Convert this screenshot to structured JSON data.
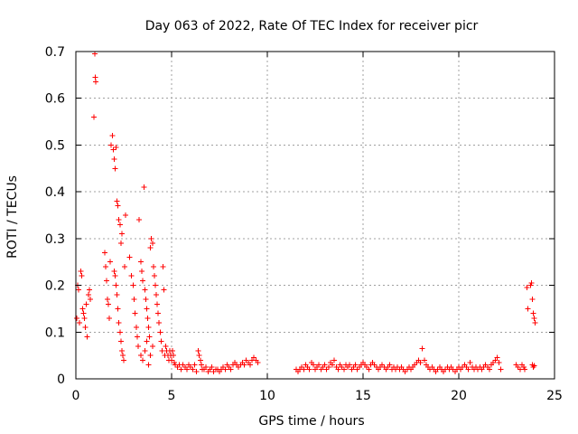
{
  "chart_data": {
    "type": "scatter",
    "title": "Day 063 of 2022, Rate Of TEC Index for receiver picr",
    "xlabel": "GPS time / hours",
    "ylabel": "ROTI / TECUs",
    "xlim": [
      0,
      25
    ],
    "ylim": [
      0,
      0.7
    ],
    "xticks": [
      0,
      5,
      10,
      15,
      20,
      25
    ],
    "yticks": [
      0,
      0.1,
      0.2,
      0.3,
      0.4,
      0.5,
      0.6,
      0.7
    ],
    "grid": true,
    "marker": "+",
    "color": "#ff0000",
    "series": [
      {
        "name": "ROTI",
        "points": [
          [
            0.05,
            0.13
          ],
          [
            0.1,
            0.2
          ],
          [
            0.15,
            0.19
          ],
          [
            0.2,
            0.12
          ],
          [
            0.25,
            0.23
          ],
          [
            0.3,
            0.22
          ],
          [
            0.35,
            0.15
          ],
          [
            0.4,
            0.14
          ],
          [
            0.45,
            0.13
          ],
          [
            0.5,
            0.11
          ],
          [
            0.55,
            0.16
          ],
          [
            0.6,
            0.09
          ],
          [
            0.65,
            0.18
          ],
          [
            0.7,
            0.19
          ],
          [
            0.75,
            0.17
          ],
          [
            1.0,
            0.695
          ],
          [
            1.02,
            0.645
          ],
          [
            1.04,
            0.635
          ],
          [
            0.95,
            0.56
          ],
          [
            1.5,
            0.27
          ],
          [
            1.55,
            0.24
          ],
          [
            1.6,
            0.21
          ],
          [
            1.65,
            0.17
          ],
          [
            1.7,
            0.16
          ],
          [
            1.75,
            0.13
          ],
          [
            1.8,
            0.25
          ],
          [
            1.85,
            0.5
          ],
          [
            1.9,
            0.52
          ],
          [
            1.95,
            0.49
          ],
          [
            2.0,
            0.47
          ],
          [
            2.05,
            0.45
          ],
          [
            2.1,
            0.495
          ],
          [
            2.15,
            0.38
          ],
          [
            2.2,
            0.37
          ],
          [
            2.25,
            0.34
          ],
          [
            2.3,
            0.33
          ],
          [
            2.35,
            0.29
          ],
          [
            2.4,
            0.31
          ],
          [
            2.0,
            0.23
          ],
          [
            2.05,
            0.22
          ],
          [
            2.1,
            0.2
          ],
          [
            2.15,
            0.18
          ],
          [
            2.2,
            0.15
          ],
          [
            2.25,
            0.12
          ],
          [
            2.3,
            0.1
          ],
          [
            2.35,
            0.08
          ],
          [
            2.4,
            0.06
          ],
          [
            2.45,
            0.05
          ],
          [
            2.5,
            0.04
          ],
          [
            2.55,
            0.24
          ],
          [
            2.6,
            0.35
          ],
          [
            2.8,
            0.26
          ],
          [
            2.9,
            0.22
          ],
          [
            3.0,
            0.2
          ],
          [
            3.05,
            0.17
          ],
          [
            3.1,
            0.14
          ],
          [
            3.15,
            0.11
          ],
          [
            3.2,
            0.09
          ],
          [
            3.25,
            0.07
          ],
          [
            3.3,
            0.34
          ],
          [
            3.4,
            0.25
          ],
          [
            3.45,
            0.23
          ],
          [
            3.5,
            0.21
          ],
          [
            3.55,
            0.41
          ],
          [
            3.6,
            0.19
          ],
          [
            3.65,
            0.17
          ],
          [
            3.7,
            0.15
          ],
          [
            3.75,
            0.13
          ],
          [
            3.8,
            0.11
          ],
          [
            3.85,
            0.09
          ],
          [
            3.9,
            0.28
          ],
          [
            3.95,
            0.3
          ],
          [
            4.0,
            0.29
          ],
          [
            4.05,
            0.24
          ],
          [
            3.4,
            0.05
          ],
          [
            3.5,
            0.04
          ],
          [
            3.6,
            0.06
          ],
          [
            3.7,
            0.08
          ],
          [
            3.8,
            0.03
          ],
          [
            3.9,
            0.05
          ],
          [
            4.0,
            0.07
          ],
          [
            4.1,
            0.22
          ],
          [
            4.15,
            0.2
          ],
          [
            4.2,
            0.18
          ],
          [
            4.25,
            0.16
          ],
          [
            4.3,
            0.14
          ],
          [
            4.35,
            0.12
          ],
          [
            4.4,
            0.1
          ],
          [
            4.45,
            0.08
          ],
          [
            4.5,
            0.06
          ],
          [
            4.55,
            0.24
          ],
          [
            4.6,
            0.19
          ],
          [
            4.65,
            0.05
          ],
          [
            4.7,
            0.07
          ],
          [
            4.75,
            0.06
          ],
          [
            4.8,
            0.05
          ],
          [
            4.85,
            0.04
          ],
          [
            4.9,
            0.06
          ],
          [
            4.95,
            0.05
          ],
          [
            5.0,
            0.04
          ],
          [
            5.05,
            0.06
          ],
          [
            5.1,
            0.05
          ],
          [
            5.15,
            0.035
          ],
          [
            5.2,
            0.03
          ],
          [
            5.3,
            0.025
          ],
          [
            5.4,
            0.03
          ],
          [
            5.5,
            0.02
          ],
          [
            5.6,
            0.03
          ],
          [
            5.7,
            0.025
          ],
          [
            5.8,
            0.02
          ],
          [
            5.9,
            0.03
          ],
          [
            6.0,
            0.025
          ],
          [
            6.1,
            0.02
          ],
          [
            6.2,
            0.03
          ],
          [
            6.3,
            0.015
          ],
          [
            6.4,
            0.06
          ],
          [
            6.45,
            0.05
          ],
          [
            6.5,
            0.04
          ],
          [
            6.55,
            0.03
          ],
          [
            6.6,
            0.02
          ],
          [
            6.7,
            0.02
          ],
          [
            6.8,
            0.025
          ],
          [
            6.9,
            0.015
          ],
          [
            7.0,
            0.02
          ],
          [
            7.1,
            0.025
          ],
          [
            7.2,
            0.015
          ],
          [
            7.3,
            0.02
          ],
          [
            7.4,
            0.02
          ],
          [
            7.5,
            0.015
          ],
          [
            7.6,
            0.02
          ],
          [
            7.7,
            0.025
          ],
          [
            7.8,
            0.02
          ],
          [
            7.9,
            0.03
          ],
          [
            8.0,
            0.025
          ],
          [
            8.1,
            0.02
          ],
          [
            8.2,
            0.03
          ],
          [
            8.3,
            0.035
          ],
          [
            8.4,
            0.03
          ],
          [
            8.5,
            0.025
          ],
          [
            8.6,
            0.03
          ],
          [
            8.7,
            0.035
          ],
          [
            8.8,
            0.03
          ],
          [
            8.9,
            0.04
          ],
          [
            9.0,
            0.035
          ],
          [
            9.1,
            0.03
          ],
          [
            9.2,
            0.04
          ],
          [
            9.3,
            0.045
          ],
          [
            9.4,
            0.04
          ],
          [
            9.5,
            0.035
          ],
          [
            11.5,
            0.02
          ],
          [
            11.6,
            0.015
          ],
          [
            11.7,
            0.02
          ],
          [
            11.8,
            0.025
          ],
          [
            11.9,
            0.02
          ],
          [
            12.0,
            0.03
          ],
          [
            12.1,
            0.025
          ],
          [
            12.2,
            0.02
          ],
          [
            12.3,
            0.035
          ],
          [
            12.4,
            0.03
          ],
          [
            12.5,
            0.02
          ],
          [
            12.6,
            0.025
          ],
          [
            12.7,
            0.03
          ],
          [
            12.8,
            0.02
          ],
          [
            12.9,
            0.025
          ],
          [
            13.0,
            0.03
          ],
          [
            13.1,
            0.02
          ],
          [
            13.2,
            0.025
          ],
          [
            13.3,
            0.035
          ],
          [
            13.4,
            0.03
          ],
          [
            13.5,
            0.04
          ],
          [
            13.6,
            0.025
          ],
          [
            13.7,
            0.02
          ],
          [
            13.8,
            0.03
          ],
          [
            13.9,
            0.025
          ],
          [
            14.0,
            0.02
          ],
          [
            14.1,
            0.03
          ],
          [
            14.2,
            0.025
          ],
          [
            14.3,
            0.03
          ],
          [
            14.4,
            0.02
          ],
          [
            14.5,
            0.025
          ],
          [
            14.6,
            0.03
          ],
          [
            14.7,
            0.02
          ],
          [
            14.8,
            0.025
          ],
          [
            14.9,
            0.03
          ],
          [
            15.0,
            0.035
          ],
          [
            15.1,
            0.03
          ],
          [
            15.2,
            0.025
          ],
          [
            15.3,
            0.02
          ],
          [
            15.4,
            0.03
          ],
          [
            15.5,
            0.035
          ],
          [
            15.6,
            0.03
          ],
          [
            15.7,
            0.025
          ],
          [
            15.8,
            0.02
          ],
          [
            15.9,
            0.025
          ],
          [
            16.0,
            0.03
          ],
          [
            16.1,
            0.025
          ],
          [
            16.2,
            0.02
          ],
          [
            16.3,
            0.025
          ],
          [
            16.4,
            0.03
          ],
          [
            16.5,
            0.02
          ],
          [
            16.6,
            0.025
          ],
          [
            16.7,
            0.02
          ],
          [
            16.8,
            0.025
          ],
          [
            16.9,
            0.02
          ],
          [
            17.0,
            0.025
          ],
          [
            17.1,
            0.02
          ],
          [
            17.2,
            0.015
          ],
          [
            17.3,
            0.02
          ],
          [
            17.4,
            0.025
          ],
          [
            17.5,
            0.02
          ],
          [
            17.6,
            0.025
          ],
          [
            17.7,
            0.03
          ],
          [
            17.8,
            0.035
          ],
          [
            17.9,
            0.04
          ],
          [
            18.0,
            0.035
          ],
          [
            18.1,
            0.065
          ],
          [
            18.2,
            0.04
          ],
          [
            18.3,
            0.03
          ],
          [
            18.4,
            0.025
          ],
          [
            18.5,
            0.02
          ],
          [
            18.6,
            0.025
          ],
          [
            18.7,
            0.02
          ],
          [
            18.8,
            0.015
          ],
          [
            18.9,
            0.02
          ],
          [
            19.0,
            0.025
          ],
          [
            19.1,
            0.02
          ],
          [
            19.2,
            0.015
          ],
          [
            19.3,
            0.02
          ],
          [
            19.4,
            0.025
          ],
          [
            19.5,
            0.02
          ],
          [
            19.6,
            0.025
          ],
          [
            19.7,
            0.02
          ],
          [
            19.8,
            0.015
          ],
          [
            19.9,
            0.02
          ],
          [
            20.0,
            0.025
          ],
          [
            20.1,
            0.02
          ],
          [
            20.2,
            0.025
          ],
          [
            20.3,
            0.03
          ],
          [
            20.4,
            0.025
          ],
          [
            20.5,
            0.02
          ],
          [
            20.6,
            0.035
          ],
          [
            20.7,
            0.025
          ],
          [
            20.8,
            0.02
          ],
          [
            20.9,
            0.025
          ],
          [
            21.0,
            0.02
          ],
          [
            21.1,
            0.025
          ],
          [
            21.2,
            0.02
          ],
          [
            21.3,
            0.025
          ],
          [
            21.4,
            0.03
          ],
          [
            21.5,
            0.025
          ],
          [
            21.6,
            0.02
          ],
          [
            21.7,
            0.03
          ],
          [
            21.8,
            0.035
          ],
          [
            21.9,
            0.04
          ],
          [
            22.0,
            0.045
          ],
          [
            22.1,
            0.035
          ],
          [
            22.2,
            0.02
          ],
          [
            23.0,
            0.03
          ],
          [
            23.1,
            0.025
          ],
          [
            23.2,
            0.02
          ],
          [
            23.3,
            0.03
          ],
          [
            23.4,
            0.025
          ],
          [
            23.45,
            0.02
          ],
          [
            23.55,
            0.195
          ],
          [
            23.6,
            0.15
          ],
          [
            23.75,
            0.2
          ],
          [
            23.8,
            0.205
          ],
          [
            23.85,
            0.17
          ],
          [
            23.9,
            0.14
          ],
          [
            23.95,
            0.13
          ],
          [
            23.98,
            0.12
          ],
          [
            23.85,
            0.03
          ],
          [
            23.9,
            0.025
          ],
          [
            23.95,
            0.028
          ]
        ]
      }
    ]
  }
}
